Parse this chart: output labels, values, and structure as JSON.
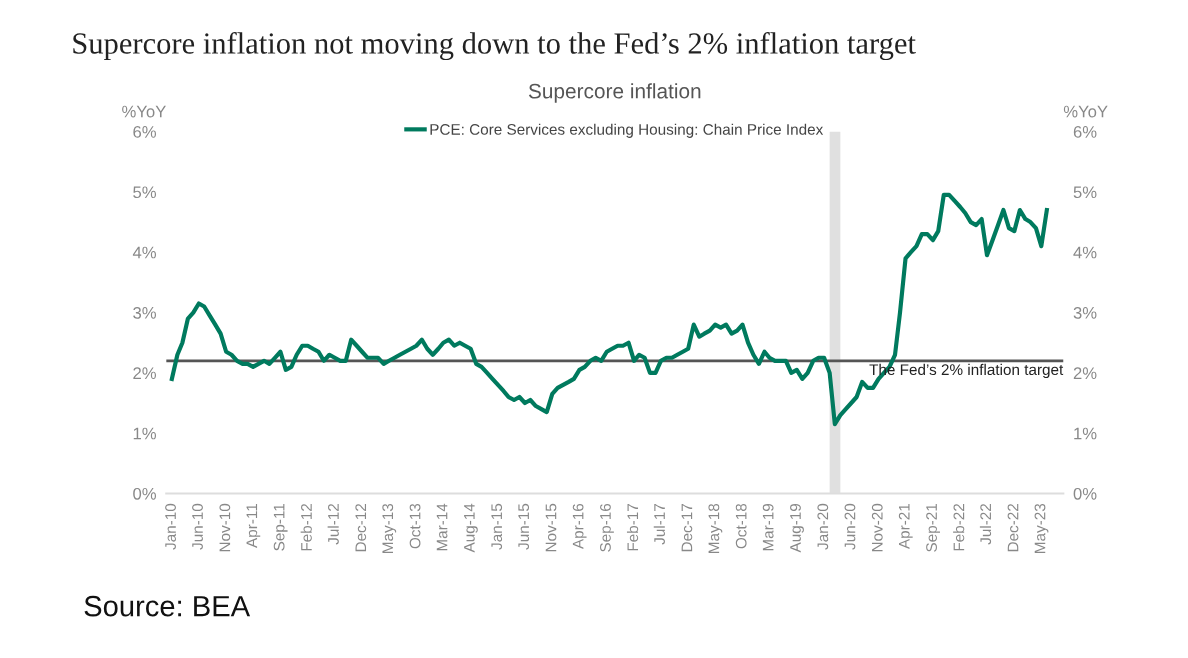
{
  "chart_data": {
    "type": "line",
    "title": "Supercore inflation not moving down to the Fed’s 2% inflation target",
    "subtitle": "Supercore inflation",
    "ylabel": "%YoY",
    "y2label": "%YoY",
    "annotations": [
      "Source: BEA"
    ],
    "x": [
      "2010-01",
      "2010-02",
      "2010-03",
      "2010-04",
      "2010-05",
      "2010-06",
      "2010-07",
      "2010-08",
      "2010-09",
      "2010-10",
      "2010-11",
      "2010-12",
      "2011-01",
      "2011-02",
      "2011-03",
      "2011-04",
      "2011-05",
      "2011-06",
      "2011-07",
      "2011-08",
      "2011-09",
      "2011-10",
      "2011-11",
      "2011-12",
      "2012-01",
      "2012-02",
      "2012-03",
      "2012-04",
      "2012-05",
      "2012-06",
      "2012-07",
      "2012-08",
      "2012-09",
      "2012-10",
      "2012-11",
      "2012-12",
      "2013-01",
      "2013-02",
      "2013-03",
      "2013-04",
      "2013-05",
      "2013-06",
      "2013-07",
      "2013-08",
      "2013-09",
      "2013-10",
      "2013-11",
      "2013-12",
      "2014-01",
      "2014-02",
      "2014-03",
      "2014-04",
      "2014-05",
      "2014-06",
      "2014-07",
      "2014-08",
      "2014-09",
      "2014-10",
      "2014-11",
      "2014-12",
      "2015-01",
      "2015-02",
      "2015-03",
      "2015-04",
      "2015-05",
      "2015-06",
      "2015-07",
      "2015-08",
      "2015-09",
      "2015-10",
      "2015-11",
      "2015-12",
      "2016-01",
      "2016-02",
      "2016-03",
      "2016-04",
      "2016-05",
      "2016-06",
      "2016-07",
      "2016-08",
      "2016-09",
      "2016-10",
      "2016-11",
      "2016-12",
      "2017-01",
      "2017-02",
      "2017-03",
      "2017-04",
      "2017-05",
      "2017-06",
      "2017-07",
      "2017-08",
      "2017-09",
      "2017-10",
      "2017-11",
      "2017-12",
      "2018-01",
      "2018-02",
      "2018-03",
      "2018-04",
      "2018-05",
      "2018-06",
      "2018-07",
      "2018-08",
      "2018-09",
      "2018-10",
      "2018-11",
      "2018-12",
      "2019-01",
      "2019-02",
      "2019-03",
      "2019-04",
      "2019-05",
      "2019-06",
      "2019-07",
      "2019-08",
      "2019-09",
      "2019-10",
      "2019-11",
      "2019-12",
      "2020-01",
      "2020-02",
      "2020-03",
      "2020-04",
      "2020-05",
      "2020-06",
      "2020-07",
      "2020-08",
      "2020-09",
      "2020-10",
      "2020-11",
      "2020-12",
      "2021-01",
      "2021-02",
      "2021-03",
      "2021-04",
      "2021-05",
      "2021-06",
      "2021-07",
      "2021-08",
      "2021-09",
      "2021-10",
      "2021-11",
      "2021-12",
      "2022-01",
      "2022-02",
      "2022-03",
      "2022-04",
      "2022-05",
      "2022-06",
      "2022-07",
      "2022-08",
      "2022-09",
      "2022-10",
      "2022-11",
      "2022-12",
      "2023-01",
      "2023-02",
      "2023-03",
      "2023-04",
      "2023-05",
      "2023-06"
    ],
    "series": [
      {
        "name": "PCE: Core Services excluding Housing: Chain Price Index",
        "color": "#007a5e",
        "values": [
          1.9,
          2.3,
          2.5,
          2.9,
          3.0,
          3.15,
          3.1,
          2.95,
          2.8,
          2.65,
          2.35,
          2.3,
          2.2,
          2.15,
          2.15,
          2.1,
          2.15,
          2.2,
          2.15,
          2.25,
          2.35,
          2.05,
          2.1,
          2.3,
          2.45,
          2.45,
          2.4,
          2.35,
          2.2,
          2.3,
          2.25,
          2.2,
          2.2,
          2.55,
          2.45,
          2.35,
          2.25,
          2.25,
          2.25,
          2.15,
          2.2,
          2.25,
          2.3,
          2.35,
          2.4,
          2.45,
          2.55,
          2.4,
          2.3,
          2.4,
          2.5,
          2.55,
          2.45,
          2.5,
          2.45,
          2.4,
          2.15,
          2.1,
          2.0,
          1.9,
          1.8,
          1.7,
          1.6,
          1.55,
          1.6,
          1.5,
          1.55,
          1.45,
          1.4,
          1.35,
          1.65,
          1.75,
          1.8,
          1.85,
          1.9,
          2.05,
          2.1,
          2.2,
          2.25,
          2.2,
          2.35,
          2.4,
          2.45,
          2.45,
          2.5,
          2.2,
          2.3,
          2.25,
          2.0,
          2.0,
          2.2,
          2.25,
          2.25,
          2.3,
          2.35,
          2.4,
          2.8,
          2.6,
          2.65,
          2.7,
          2.8,
          2.75,
          2.8,
          2.65,
          2.7,
          2.8,
          2.5,
          2.3,
          2.15,
          2.35,
          2.25,
          2.2,
          2.2,
          2.2,
          2.0,
          2.05,
          1.9,
          2.0,
          2.2,
          2.25,
          2.25,
          2.0,
          1.15,
          1.3,
          1.4,
          1.5,
          1.6,
          1.85,
          1.75,
          1.75,
          1.9,
          2.0,
          2.1,
          2.3,
          3.0,
          3.9,
          4.0,
          4.1,
          4.3,
          4.3,
          4.2,
          4.35,
          4.95,
          4.95,
          4.85,
          4.75,
          4.65,
          4.5,
          4.45,
          4.55,
          3.95,
          4.2,
          4.45,
          4.7,
          4.4,
          4.35,
          4.7,
          4.55,
          4.5,
          4.4,
          4.1,
          4.7
        ]
      }
    ],
    "xlim": [
      "2009-12",
      "2023-09"
    ],
    "xticks": [
      {
        "value": "2010-01",
        "label": "Jan-10"
      },
      {
        "value": "2010-06",
        "label": "Jun-10"
      },
      {
        "value": "2010-11",
        "label": "Nov-10"
      },
      {
        "value": "2011-04",
        "label": "Apr-11"
      },
      {
        "value": "2011-09",
        "label": "Sep-11"
      },
      {
        "value": "2012-02",
        "label": "Feb-12"
      },
      {
        "value": "2012-07",
        "label": "Jul-12"
      },
      {
        "value": "2012-12",
        "label": "Dec-12"
      },
      {
        "value": "2013-05",
        "label": "May-13"
      },
      {
        "value": "2013-10",
        "label": "Oct-13"
      },
      {
        "value": "2014-03",
        "label": "Mar-14"
      },
      {
        "value": "2014-08",
        "label": "Aug-14"
      },
      {
        "value": "2015-01",
        "label": "Jan-15"
      },
      {
        "value": "2015-06",
        "label": "Jun-15"
      },
      {
        "value": "2015-11",
        "label": "Nov-15"
      },
      {
        "value": "2016-04",
        "label": "Apr-16"
      },
      {
        "value": "2016-09",
        "label": "Sep-16"
      },
      {
        "value": "2017-02",
        "label": "Feb-17"
      },
      {
        "value": "2017-07",
        "label": "Jul-17"
      },
      {
        "value": "2017-12",
        "label": "Dec-17"
      },
      {
        "value": "2018-05",
        "label": "May-18"
      },
      {
        "value": "2018-10",
        "label": "Oct-18"
      },
      {
        "value": "2019-03",
        "label": "Mar-19"
      },
      {
        "value": "2019-08",
        "label": "Aug-19"
      },
      {
        "value": "2020-01",
        "label": "Jan-20"
      },
      {
        "value": "2020-06",
        "label": "Jun-20"
      },
      {
        "value": "2020-11",
        "label": "Nov-20"
      },
      {
        "value": "2021-04",
        "label": "Apr-21"
      },
      {
        "value": "2021-09",
        "label": "Sep-21"
      },
      {
        "value": "2022-02",
        "label": "Feb-22"
      },
      {
        "value": "2022-07",
        "label": "Jul-22"
      },
      {
        "value": "2022-12",
        "label": "Dec-22"
      },
      {
        "value": "2023-05",
        "label": "May-23"
      }
    ],
    "ylim": [
      0,
      6
    ],
    "yticks": [
      {
        "value": 0,
        "label": "0%"
      },
      {
        "value": 1,
        "label": "1%"
      },
      {
        "value": 2,
        "label": "2%"
      },
      {
        "value": 3,
        "label": "3%"
      },
      {
        "value": 4,
        "label": "4%"
      },
      {
        "value": 5,
        "label": "5%"
      },
      {
        "value": 6,
        "label": "6%"
      }
    ],
    "y2lim": [
      0,
      6
    ],
    "y2ticks": [
      {
        "value": 0,
        "label": "0%"
      },
      {
        "value": 1,
        "label": "1%"
      },
      {
        "value": 2,
        "label": "2%"
      },
      {
        "value": 3,
        "label": "3%"
      },
      {
        "value": 4,
        "label": "4%"
      },
      {
        "value": 5,
        "label": "5%"
      },
      {
        "value": 6,
        "label": "6%"
      }
    ],
    "ref_lines": [
      {
        "axis": "y",
        "value": 2.2,
        "label": "The Fed’s 2% inflation target",
        "color": "#555555"
      }
    ],
    "bands": [
      {
        "axis": "x",
        "from": "2020-02",
        "to": "2020-04",
        "color": "#e0e0e0"
      }
    ],
    "legend": "top",
    "grid": false,
    "marker": "none",
    "line_style": "solid"
  }
}
